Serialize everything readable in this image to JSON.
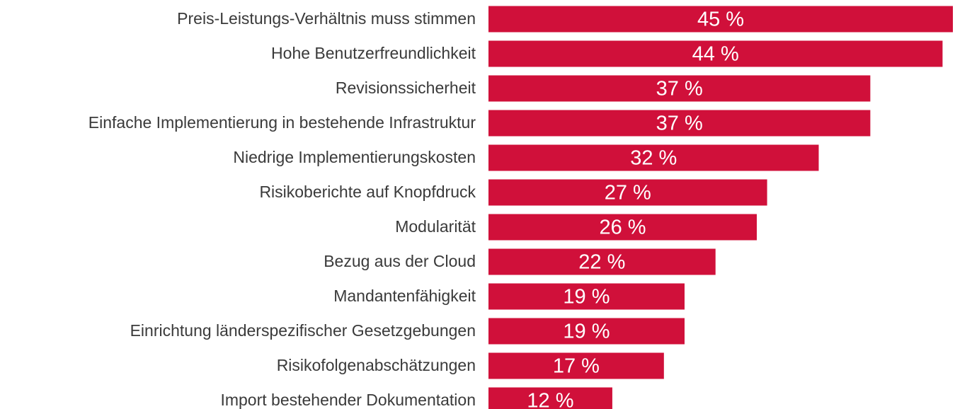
{
  "chart_data": {
    "type": "barh",
    "categories": [
      "Preis-Leistungs-Verhältnis muss stimmen",
      "Hohe Benutzerfreundlichkeit",
      "Revisionssicherheit",
      "Einfache Implementierung in bestehende Infrastruktur",
      "Niedrige Implementierungskosten",
      "Risikoberichte auf Knopfdruck",
      "Modularität",
      "Bezug aus der Cloud",
      "Mandantenfähigkeit",
      "Einrichtung länderspezifischer Gesetzgebungen",
      "Risikofolgenabschätzungen",
      "Import bestehender Dokumentation"
    ],
    "values": [
      45,
      44,
      37,
      37,
      32,
      27,
      26,
      22,
      19,
      19,
      17,
      12
    ],
    "value_labels": [
      "45 %",
      "44 %",
      "37 %",
      "37 %",
      "32 %",
      "27 %",
      "26 %",
      "22 %",
      "19 %",
      "19 %",
      "17 %",
      "12 %"
    ],
    "color": "#d0103a",
    "xlim": [
      0,
      45
    ]
  }
}
